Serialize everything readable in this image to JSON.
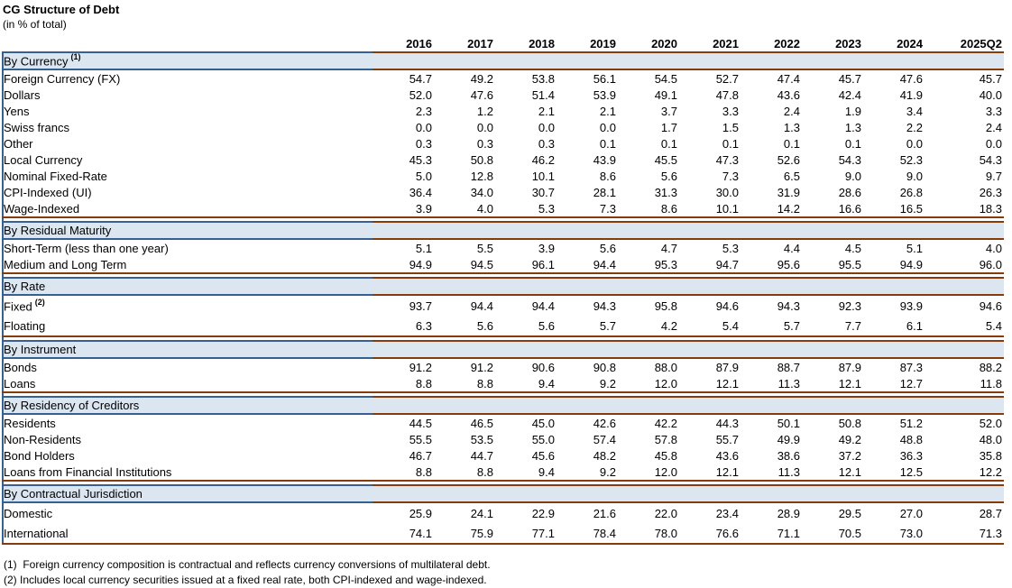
{
  "title": "CG Structure of Debt",
  "subtitle": "(in % of total)",
  "columns": [
    "2016",
    "2017",
    "2018",
    "2019",
    "2020",
    "2021",
    "2022",
    "2023",
    "2024",
    "2025Q2"
  ],
  "sections": [
    {
      "header": "By Currency",
      "header_sup": "(1)",
      "rows": [
        {
          "label": "Foreign Currency (FX)",
          "indent": 1,
          "values": [
            "54.7",
            "49.2",
            "53.8",
            "56.1",
            "54.5",
            "52.7",
            "47.4",
            "45.7",
            "47.6",
            "45.7"
          ]
        },
        {
          "label": "Dollars",
          "indent": 2,
          "values": [
            "52.0",
            "47.6",
            "51.4",
            "53.9",
            "49.1",
            "47.8",
            "43.6",
            "42.4",
            "41.9",
            "40.0"
          ]
        },
        {
          "label": "Yens",
          "indent": 2,
          "values": [
            "2.3",
            "1.2",
            "2.1",
            "2.1",
            "3.7",
            "3.3",
            "2.4",
            "1.9",
            "3.4",
            "3.3"
          ]
        },
        {
          "label": "Swiss francs",
          "indent": 2,
          "values": [
            "0.0",
            "0.0",
            "0.0",
            "0.0",
            "1.7",
            "1.5",
            "1.3",
            "1.3",
            "2.2",
            "2.4"
          ]
        },
        {
          "label": "Other",
          "indent": 2,
          "values": [
            "0.3",
            "0.3",
            "0.3",
            "0.1",
            "0.1",
            "0.1",
            "0.1",
            "0.1",
            "0.0",
            "0.0"
          ]
        },
        {
          "label": "Local Currency",
          "indent": 1,
          "values": [
            "45.3",
            "50.8",
            "46.2",
            "43.9",
            "45.5",
            "47.3",
            "52.6",
            "54.3",
            "52.3",
            "54.3"
          ]
        },
        {
          "label": "Nominal Fixed-Rate",
          "indent": 2,
          "values": [
            "5.0",
            "12.8",
            "10.1",
            "8.6",
            "5.6",
            "7.3",
            "6.5",
            "9.0",
            "9.0",
            "9.7"
          ]
        },
        {
          "label": "CPI-Indexed (UI)",
          "indent": 2,
          "values": [
            "36.4",
            "34.0",
            "30.7",
            "28.1",
            "31.3",
            "30.0",
            "31.9",
            "28.6",
            "26.8",
            "26.3"
          ]
        },
        {
          "label": "Wage-Indexed",
          "indent": 2,
          "values": [
            "3.9",
            "4.0",
            "5.3",
            "7.3",
            "8.6",
            "10.1",
            "14.2",
            "16.6",
            "16.5",
            "18.3"
          ]
        }
      ]
    },
    {
      "header": "By Residual Maturity",
      "rows": [
        {
          "label": "Short-Term (less than one year)",
          "indent": 1,
          "values": [
            "5.1",
            "5.5",
            "3.9",
            "5.6",
            "4.7",
            "5.3",
            "4.4",
            "4.5",
            "5.1",
            "4.0"
          ]
        },
        {
          "label": "Medium and Long Term",
          "indent": 1,
          "values": [
            "94.9",
            "94.5",
            "96.1",
            "94.4",
            "95.3",
            "94.7",
            "95.6",
            "95.5",
            "94.9",
            "96.0"
          ]
        }
      ]
    },
    {
      "header": "By Rate",
      "rows": [
        {
          "label": "Fixed",
          "sup": "(2)",
          "indent": 1,
          "values": [
            "93.7",
            "94.4",
            "94.4",
            "94.3",
            "95.8",
            "94.6",
            "94.3",
            "92.3",
            "93.9",
            "94.6"
          ]
        },
        {
          "label": "Floating",
          "indent": 1,
          "values": [
            "6.3",
            "5.6",
            "5.6",
            "5.7",
            "4.2",
            "5.4",
            "5.7",
            "7.7",
            "6.1",
            "5.4"
          ]
        }
      ]
    },
    {
      "header": "By Instrument",
      "rows": [
        {
          "label": "Bonds",
          "indent": 1,
          "values": [
            "91.2",
            "91.2",
            "90.6",
            "90.8",
            "88.0",
            "87.9",
            "88.7",
            "87.9",
            "87.3",
            "88.2"
          ]
        },
        {
          "label": "Loans",
          "indent": 1,
          "values": [
            "8.8",
            "8.8",
            "9.4",
            "9.2",
            "12.0",
            "12.1",
            "11.3",
            "12.1",
            "12.7",
            "11.8"
          ]
        }
      ]
    },
    {
      "header": "By Residency of Creditors",
      "rows": [
        {
          "label": "Residents",
          "indent": 1,
          "values": [
            "44.5",
            "46.5",
            "45.0",
            "42.6",
            "42.2",
            "44.3",
            "50.1",
            "50.8",
            "51.2",
            "52.0"
          ]
        },
        {
          "label": "Non-Residents",
          "indent": 1,
          "values": [
            "55.5",
            "53.5",
            "55.0",
            "57.4",
            "57.8",
            "55.7",
            "49.9",
            "49.2",
            "48.8",
            "48.0"
          ]
        },
        {
          "label": "Bond Holders",
          "indent": 2,
          "values": [
            "46.7",
            "44.7",
            "45.6",
            "48.2",
            "45.8",
            "43.6",
            "38.6",
            "37.2",
            "36.3",
            "35.8"
          ]
        },
        {
          "label": "Loans from Financial Institutions",
          "indent": 2,
          "values": [
            "8.8",
            "8.8",
            "9.4",
            "9.2",
            "12.0",
            "12.1",
            "11.3",
            "12.1",
            "12.5",
            "12.2"
          ]
        }
      ]
    },
    {
      "header": "By Contractual Jurisdiction",
      "rows": [
        {
          "label": "Domestic",
          "indent": 1,
          "values": [
            "25.9",
            "24.1",
            "22.9",
            "21.6",
            "22.0",
            "23.4",
            "28.9",
            "29.5",
            "27.0",
            "28.7"
          ]
        },
        {
          "label": "International",
          "indent": 1,
          "values": [
            "74.1",
            "75.9",
            "77.1",
            "78.4",
            "78.0",
            "76.6",
            "71.1",
            "70.5",
            "73.0",
            "71.3"
          ]
        }
      ]
    }
  ],
  "footnotes": [
    "(1)  Foreign currency composition is contractual and reflects currency conversions of multilateral debt.",
    "(2) Includes local currency securities issued at a fixed real rate, both CPI-indexed and wage-indexed."
  ],
  "colors": {
    "band_fill": "#dce6f1",
    "maroon_border": "#843c0c",
    "blue_border": "#366092",
    "text": "#000000"
  }
}
